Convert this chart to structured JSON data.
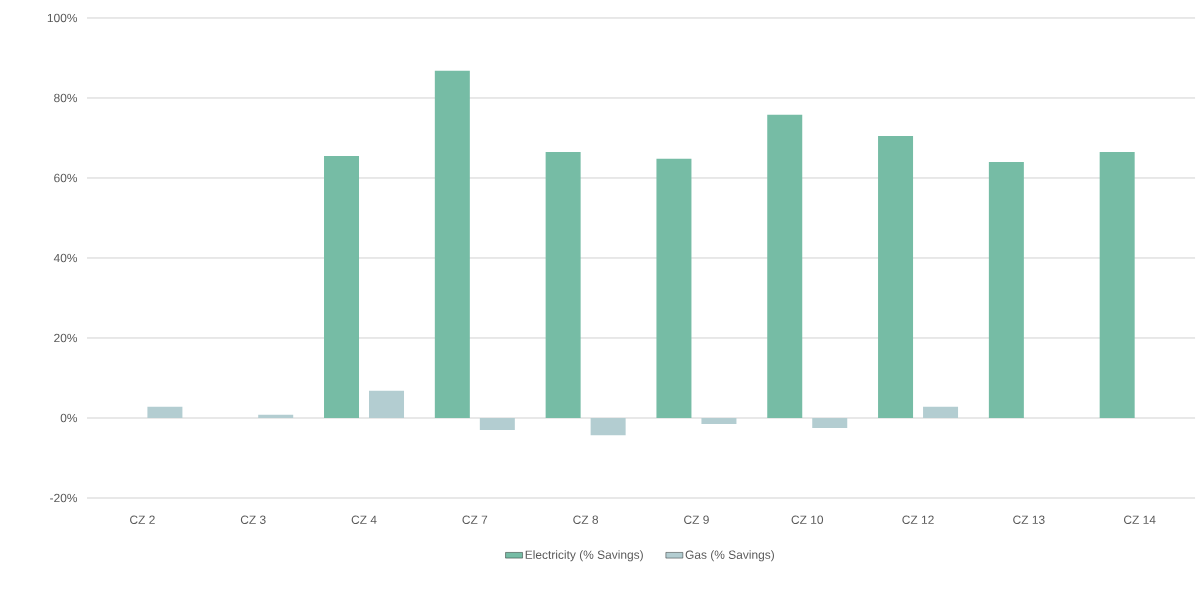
{
  "chart_data": {
    "type": "bar",
    "categories": [
      "CZ 2",
      "CZ 3",
      "CZ 4",
      "CZ 7",
      "CZ 8",
      "CZ 9",
      "CZ 10",
      "CZ 12",
      "CZ 13",
      "CZ 14"
    ],
    "series": [
      {
        "name": "Electricity (% Savings)",
        "color": "#76bca5",
        "values": [
          0,
          0,
          65.5,
          86.8,
          66.5,
          64.8,
          75.8,
          70.5,
          64,
          66.5
        ]
      },
      {
        "name": "Gas (% Savings)",
        "color": "#b3cdd1",
        "values": [
          2.8,
          0.8,
          6.8,
          -3,
          -4.3,
          -1.5,
          -2.5,
          2.8,
          0,
          0
        ]
      }
    ],
    "ylim": [
      -20,
      100
    ],
    "yticks": [
      {
        "value": -20,
        "label": "-20%"
      },
      {
        "value": 0,
        "label": "0%"
      },
      {
        "value": 20,
        "label": "20%"
      },
      {
        "value": 40,
        "label": "40%"
      },
      {
        "value": 60,
        "label": "60%"
      },
      {
        "value": 80,
        "label": "80%"
      },
      {
        "value": 100,
        "label": "100%"
      }
    ],
    "grid": "y",
    "legend": "bottom"
  }
}
